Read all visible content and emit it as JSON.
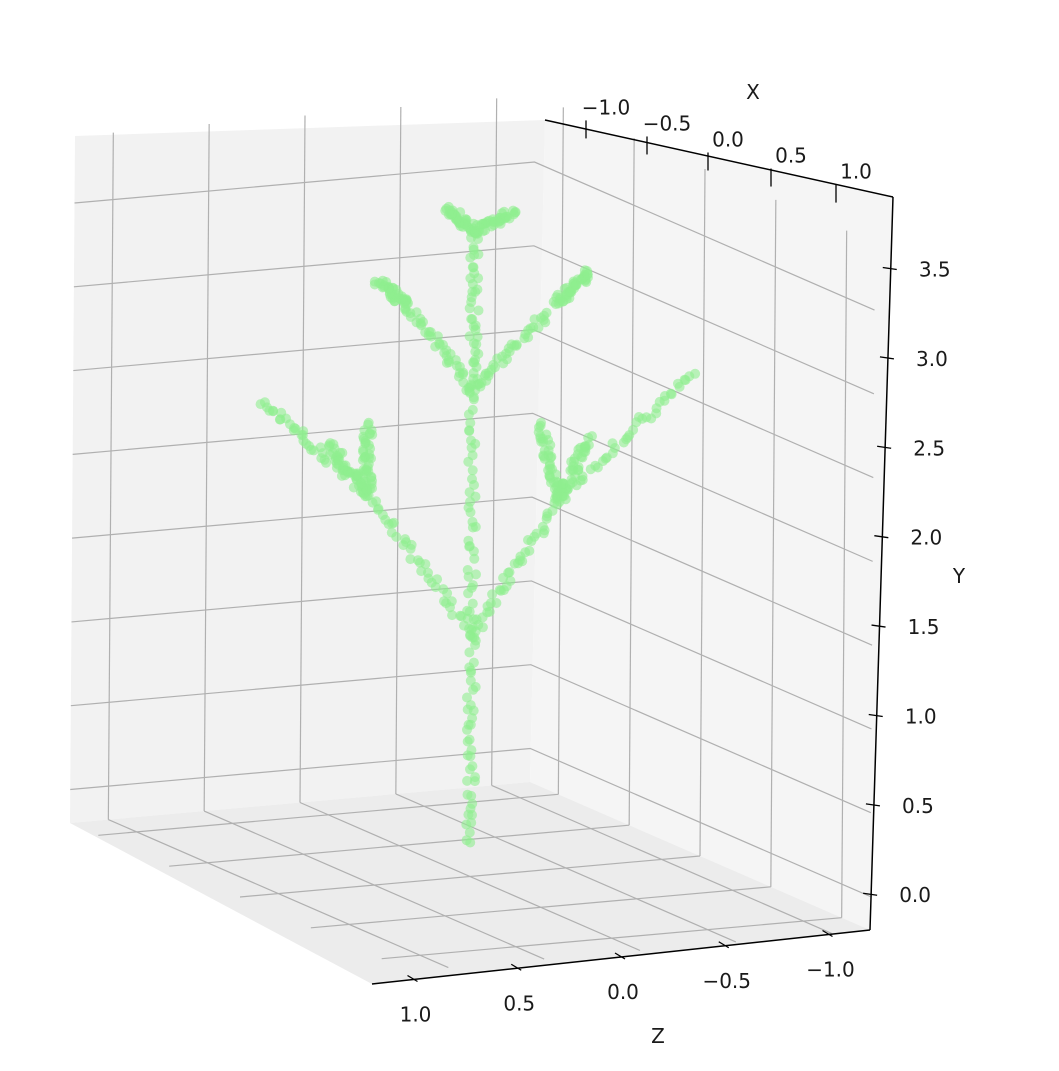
{
  "chart_data": {
    "type": "scatter",
    "projection": "3d",
    "title": "",
    "xlabel": "X",
    "ylabel": "Y",
    "zlabel": "Z",
    "x_ticks": [
      -1.0,
      -0.5,
      0.0,
      0.5,
      1.0
    ],
    "x_tick_labels": [
      "−1.0",
      "−0.5",
      "0.0",
      "0.5",
      "1.0"
    ],
    "y_ticks": [
      0.0,
      0.5,
      1.0,
      1.5,
      2.0,
      2.5,
      3.0,
      3.5
    ],
    "y_tick_labels": [
      "0.0",
      "0.5",
      "1.0",
      "1.5",
      "2.0",
      "2.5",
      "3.0",
      "3.5"
    ],
    "z_ticks": [
      1.0,
      0.5,
      0.0,
      -0.5,
      -1.0
    ],
    "z_tick_labels": [
      "1.0",
      "0.5",
      "0.0",
      "−0.5",
      "−1.0"
    ],
    "xlim": [
      -1.2,
      1.2
    ],
    "ylim": [
      -0.2,
      3.9
    ],
    "zlim": [
      -1.2,
      1.2
    ],
    "grid": true,
    "marker_color": "#90ee90",
    "marker_alpha": 0.6,
    "description_shape": "fractal tree (L-system) point cloud",
    "series": [
      {
        "segments": [
          {
            "from": [
              0.0,
              0.0,
              0.0
            ],
            "to": [
              0.0,
              1.25,
              0.0
            ]
          },
          {
            "from": [
              0.0,
              1.25,
              0.0
            ],
            "to": [
              0.0,
              2.7,
              0.0
            ]
          },
          {
            "from": [
              0.0,
              2.7,
              0.0
            ],
            "to": [
              0.0,
              3.65,
              0.0
            ]
          },
          {
            "from": [
              0.0,
              1.25,
              0.0
            ],
            "to": [
              -0.55,
              2.15,
              0.0
            ]
          },
          {
            "from": [
              -0.55,
              2.15,
              0.0
            ],
            "to": [
              -1.1,
              2.75,
              0.0
            ]
          },
          {
            "from": [
              -0.55,
              2.15,
              0.0
            ],
            "to": [
              -0.55,
              2.55,
              0.0
            ]
          },
          {
            "from": [
              -0.55,
              2.15,
              0.0
            ],
            "to": [
              -0.75,
              2.45,
              0.0
            ]
          },
          {
            "from": [
              0.0,
              1.25,
              0.0
            ],
            "to": [
              0.45,
              2.0,
              0.0
            ]
          },
          {
            "from": [
              0.45,
              2.0,
              0.0
            ],
            "to": [
              1.15,
              2.7,
              0.0
            ]
          },
          {
            "from": [
              0.45,
              2.0,
              0.0
            ],
            "to": [
              0.35,
              2.45,
              0.0
            ]
          },
          {
            "from": [
              0.45,
              2.0,
              0.0
            ],
            "to": [
              0.6,
              2.35,
              0.0
            ]
          },
          {
            "from": [
              0.0,
              2.7,
              0.0
            ],
            "to": [
              -0.35,
              3.25,
              0.0
            ]
          },
          {
            "from": [
              -0.35,
              3.25,
              0.0
            ],
            "to": [
              -0.5,
              3.4,
              0.0
            ]
          },
          {
            "from": [
              0.0,
              2.7,
              0.0
            ],
            "to": [
              0.45,
              3.2,
              0.0
            ]
          },
          {
            "from": [
              0.45,
              3.2,
              0.0
            ],
            "to": [
              0.6,
              3.35,
              0.0
            ]
          },
          {
            "from": [
              0.0,
              3.65,
              0.0
            ],
            "to": [
              -0.15,
              3.8,
              0.0
            ]
          },
          {
            "from": [
              0.0,
              3.65,
              0.0
            ],
            "to": [
              0.2,
              3.75,
              0.0
            ]
          }
        ]
      }
    ]
  }
}
